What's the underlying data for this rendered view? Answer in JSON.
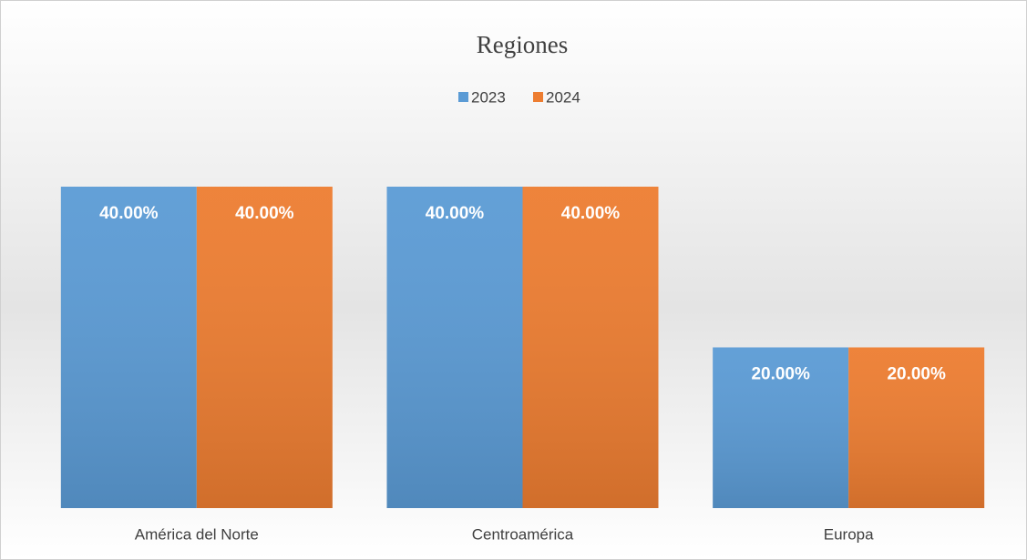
{
  "chart_data": {
    "type": "bar",
    "title": "Regiones",
    "categories": [
      "América del Norte",
      "Centroamérica",
      "Europa"
    ],
    "series": [
      {
        "name": "2023",
        "color": "#5b9bd5",
        "values": [
          40,
          40,
          20
        ],
        "value_labels": [
          "40.00%",
          "40.00%",
          "20.00%"
        ]
      },
      {
        "name": "2024",
        "color": "#ed7d31",
        "values": [
          40,
          40,
          20
        ],
        "value_labels": [
          "40.00%",
          "40.00%",
          "20.00%"
        ]
      }
    ],
    "legend": "top"
  }
}
